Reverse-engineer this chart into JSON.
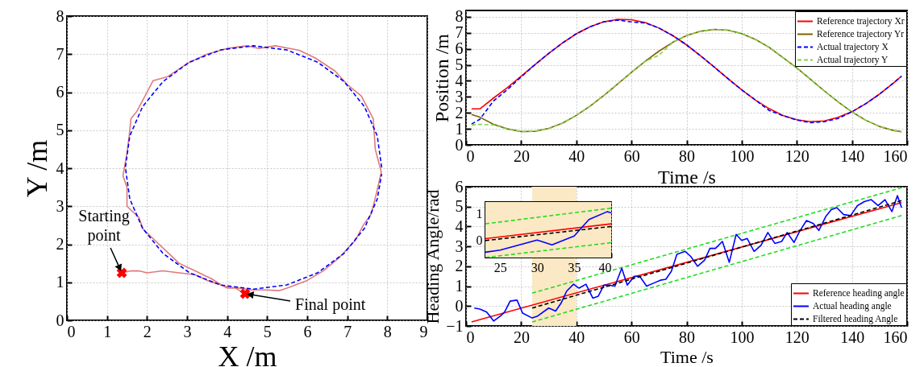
{
  "chart_data": [
    {
      "type": "line",
      "xlabel": "X /m",
      "ylabel": "Y /m",
      "xlim": [
        0,
        9
      ],
      "ylim": [
        0,
        8
      ],
      "xticks": [
        0,
        1,
        2,
        3,
        4,
        5,
        6,
        7,
        8,
        9
      ],
      "yticks": [
        0,
        1,
        2,
        3,
        4,
        5,
        6,
        7,
        8
      ],
      "grid": true,
      "series": [
        {
          "color": "#e07a7a",
          "line_style": "solid",
          "x": [
            1.37,
            1.6,
            1.8,
            2.0,
            2.4,
            2.8,
            3.2,
            3.5,
            3.8,
            4.0,
            4.3,
            4.6,
            5.0,
            5.3,
            5.55,
            6.0,
            6.4,
            6.8,
            7.2,
            7.4,
            7.6,
            7.72,
            7.85,
            7.7,
            7.65,
            7.5,
            7.35,
            7.0,
            6.7,
            6.2,
            5.8,
            5.2,
            4.8,
            4.5,
            4.0,
            3.5,
            3.0,
            2.5,
            2.15,
            2.0,
            1.75,
            1.6,
            1.55,
            1.5,
            1.4,
            1.5,
            1.5,
            1.8,
            1.9,
            2.2,
            2.5,
            2.8,
            3.2,
            3.6,
            3.9,
            4.2,
            4.45
          ],
          "values": [
            1.25,
            1.3,
            1.3,
            1.25,
            1.3,
            1.25,
            1.2,
            1.05,
            0.95,
            0.85,
            0.85,
            0.8,
            0.8,
            0.78,
            0.87,
            1.05,
            1.3,
            1.65,
            2.1,
            2.5,
            2.8,
            3.3,
            3.9,
            4.5,
            5.3,
            5.6,
            5.9,
            6.2,
            6.55,
            6.9,
            7.1,
            7.22,
            7.15,
            7.22,
            7.15,
            7.0,
            6.75,
            6.4,
            6.3,
            6.0,
            5.5,
            5.3,
            4.8,
            4.4,
            3.8,
            3.5,
            3.0,
            2.7,
            2.4,
            2.1,
            1.8,
            1.5,
            1.3,
            1.1,
            0.9,
            0.85,
            0.7
          ]
        },
        {
          "color": "#0000ff",
          "line_style": "dashed",
          "x": [
            7.86,
            7.75,
            7.43,
            6.92,
            6.26,
            5.49,
            4.66,
            3.83,
            3.06,
            2.4,
            1.89,
            1.57,
            1.46,
            1.57,
            1.89,
            2.4,
            3.06,
            3.83,
            4.66,
            5.49,
            6.26,
            6.92,
            7.43,
            7.75,
            7.86
          ],
          "values": [
            4.02,
            4.85,
            5.62,
            6.28,
            6.79,
            7.11,
            7.22,
            7.11,
            6.79,
            6.28,
            5.62,
            4.85,
            4.02,
            3.19,
            2.42,
            1.76,
            1.25,
            0.93,
            0.82,
            0.93,
            1.25,
            1.76,
            2.42,
            3.19,
            3.85
          ]
        },
        {
          "type": "scatter",
          "marker": "cross",
          "color": "#ff0000",
          "x": [
            1.37,
            4.45
          ],
          "values": [
            1.25,
            0.7
          ]
        }
      ],
      "annotations": [
        {
          "text": "Starting point",
          "x": 1.37,
          "y": 1.25
        },
        {
          "text": "Final point",
          "x": 4.45,
          "y": 0.7
        }
      ]
    },
    {
      "type": "line",
      "xlabel": "Time /s",
      "ylabel": "Position /m",
      "xlim": [
        0,
        160
      ],
      "ylim": [
        0,
        8.4
      ],
      "xticks": [
        0,
        20,
        40,
        60,
        80,
        100,
        120,
        140,
        160
      ],
      "yticks": [
        0,
        1,
        2,
        3,
        4,
        5,
        6,
        7,
        8
      ],
      "grid": true,
      "legend": "top right",
      "series": [
        {
          "name": "Reference trajectory Xr",
          "color": "#ff0000",
          "line_style": "solid",
          "x": [
            2,
            5,
            10,
            15,
            20,
            25,
            30,
            35,
            40,
            45,
            50,
            55,
            60,
            65,
            70,
            75,
            80,
            85,
            90,
            95,
            100,
            105,
            110,
            115,
            120,
            125,
            130,
            135,
            140,
            145,
            150,
            155,
            158
          ],
          "values": [
            2.25,
            2.25,
            2.93,
            3.58,
            4.29,
            5.01,
            5.72,
            6.37,
            6.94,
            7.38,
            7.69,
            7.84,
            7.82,
            7.64,
            7.3,
            6.83,
            6.25,
            5.58,
            4.87,
            4.14,
            3.44,
            2.8,
            2.26,
            1.84,
            1.57,
            1.45,
            1.5,
            1.72,
            2.07,
            2.57,
            3.17,
            3.86,
            4.29
          ]
        },
        {
          "name": "Reference trajectory Yr",
          "color": "#806000",
          "line_style": "solid",
          "x": [
            2,
            5,
            10,
            15,
            20,
            25,
            30,
            35,
            40,
            45,
            50,
            55,
            60,
            65,
            70,
            75,
            80,
            85,
            90,
            95,
            100,
            105,
            110,
            115,
            120,
            125,
            130,
            135,
            140,
            145,
            150,
            155,
            158
          ],
          "values": [
            1.9,
            1.73,
            1.28,
            1.0,
            0.83,
            0.85,
            1.03,
            1.36,
            1.84,
            2.42,
            3.09,
            3.8,
            4.53,
            5.23,
            5.86,
            6.41,
            6.83,
            7.1,
            7.22,
            7.17,
            6.95,
            6.59,
            6.09,
            null,
            4.81,
            4.09,
            3.37,
            2.68,
            2.06,
            1.54,
            1.15,
            0.9,
            0.83
          ]
        },
        {
          "name": "Actual trajectory X",
          "color": "#0000ff",
          "line_style": "dashed",
          "x": [
            2,
            5,
            10,
            15,
            20,
            25,
            30,
            35,
            40,
            45,
            50,
            55,
            60,
            65,
            70,
            75,
            80,
            85,
            90,
            95,
            100,
            105,
            110,
            115,
            120,
            125,
            130,
            135,
            140,
            145,
            150,
            155,
            158
          ],
          "values": [
            1.3,
            1.6,
            2.75,
            3.45,
            4.25,
            5.01,
            5.72,
            6.37,
            6.94,
            7.38,
            7.69,
            7.8,
            7.68,
            7.62,
            7.3,
            6.83,
            6.25,
            5.58,
            4.87,
            4.14,
            3.44,
            2.8,
            2.15,
            1.82,
            1.55,
            1.38,
            1.45,
            1.65,
            2.07,
            2.57,
            3.17,
            3.86,
            4.29
          ]
        },
        {
          "name": "Actual trajectory Y",
          "color": "#7fd34e",
          "line_style": "dashed",
          "x": [
            2,
            5,
            10,
            15,
            20,
            25,
            30,
            35,
            40,
            45,
            50,
            55,
            60,
            65,
            70,
            75,
            80,
            85,
            90,
            95,
            100,
            105,
            110,
            115,
            120,
            125,
            130,
            135,
            140,
            145,
            150,
            155,
            158
          ],
          "values": [
            1.25,
            1.28,
            1.25,
            1.0,
            0.83,
            0.85,
            1.03,
            1.36,
            1.84,
            2.42,
            3.09,
            3.8,
            4.53,
            5.23,
            5.6,
            6.41,
            6.83,
            7.1,
            7.22,
            7.17,
            6.95,
            6.59,
            6.09,
            null,
            4.81,
            4.09,
            3.37,
            2.68,
            2.06,
            1.54,
            1.15,
            0.9,
            0.8
          ]
        }
      ]
    },
    {
      "type": "line",
      "xlabel": "Time /s",
      "ylabel": "Heading Angle/rad",
      "xlim": [
        0,
        160
      ],
      "ylim": [
        -1,
        6
      ],
      "xticks": [
        0,
        20,
        40,
        60,
        80,
        100,
        120,
        140,
        160
      ],
      "yticks": [
        -1,
        0,
        1,
        2,
        3,
        4,
        5,
        6
      ],
      "grid": true,
      "legend": "bottom right",
      "bands": [
        {
          "axis": "x",
          "from": 24,
          "to": 40,
          "color": "#fbe8c4"
        }
      ],
      "series": [
        {
          "name": "Reference heading angle",
          "color": "#ff0000",
          "line_style": "solid",
          "x": [
            2,
            158
          ],
          "values": [
            -0.8,
            5.2
          ]
        },
        {
          "name": "Actual heading angle",
          "color": "#0000ff",
          "line_style": "solid",
          "x": [
            3,
            5,
            7.5,
            10,
            12.5,
            14,
            16,
            18.5,
            20.5,
            24,
            26,
            30,
            32.5,
            34.5,
            36.5,
            39,
            41,
            43.5,
            46,
            48,
            50,
            52,
            54,
            56.5,
            58.5,
            61,
            63,
            65.5,
            68,
            70.5,
            72.5,
            74.5,
            76.5,
            79.5,
            81.5,
            84,
            86.5,
            88.5,
            90.5,
            93,
            95.5,
            98,
            100,
            102,
            104.5,
            107,
            109.5,
            112,
            114.5,
            116.5,
            119,
            121,
            123.5,
            126,
            128,
            130.5,
            132.5,
            134.5,
            137,
            139.5,
            142,
            144.5,
            147,
            149.5,
            152,
            154.5,
            156.5,
            158
          ],
          "values": [
            -0.1,
            -0.15,
            -0.3,
            -0.75,
            -0.5,
            -0.3,
            0.25,
            0.3,
            -0.35,
            -0.6,
            -0.5,
            -0.1,
            -0.25,
            0.15,
            0.75,
            1.1,
            0.9,
            1.1,
            0.4,
            0.5,
            1.05,
            1.05,
            1.0,
            1.9,
            1.05,
            1.5,
            1.5,
            1.0,
            1.15,
            1.3,
            1.35,
            1.75,
            2.6,
            2.75,
            2.5,
            2.0,
            2.3,
            2.9,
            2.9,
            3.25,
            2.2,
            3.6,
            3.3,
            3.4,
            2.75,
            3.05,
            3.7,
            3.15,
            3.25,
            3.7,
            3.2,
            3.75,
            4.3,
            4.15,
            3.8,
            4.5,
            4.85,
            4.95,
            4.6,
            4.55,
            5.05,
            5.25,
            5.35,
            5.05,
            5.35,
            4.75,
            5.55,
            4.95
          ]
        },
        {
          "name": "Filtered heading Angle",
          "color": "#000000",
          "line_style": "dashed",
          "x": [
            24,
            158
          ],
          "values": [
            -0.1,
            5.3
          ]
        },
        {
          "color": "#22dd22",
          "line_style": "dashed",
          "x": [
            24,
            158
          ],
          "values": [
            0.65,
            5.95
          ]
        },
        {
          "color": "#22dd22",
          "line_style": "dashed",
          "x": [
            24,
            158
          ],
          "values": [
            -0.8,
            4.55
          ]
        }
      ]
    },
    {
      "type": "line",
      "xlim": [
        23,
        40
      ],
      "ylim": [
        -0.66,
        1.43
      ],
      "xticks": [
        25,
        30,
        35,
        40
      ],
      "yticks": [
        0,
        1
      ],
      "grid": true,
      "bands": [
        {
          "axis": "x",
          "from": 23,
          "to": 40,
          "color": "#fbe8c4"
        }
      ],
      "series": [
        {
          "color": "#ff0000",
          "line_style": "solid",
          "x": [
            23,
            40
          ],
          "values": [
            0.05,
            0.61
          ]
        },
        {
          "color": "#0000ff",
          "line_style": "solid",
          "x": [
            23,
            25,
            30,
            32,
            35,
            37,
            39.5,
            40
          ],
          "values": [
            -0.46,
            -0.38,
            0,
            -0.18,
            0.15,
            0.77,
            1.07,
            1.02
          ]
        },
        {
          "color": "#000000",
          "line_style": "dashed",
          "x": [
            23,
            40
          ],
          "values": [
            -0.02,
            0.51
          ]
        },
        {
          "color": "#22dd22",
          "line_style": "dashed",
          "x": [
            23,
            40
          ],
          "values": [
            0.61,
            1.2
          ]
        },
        {
          "color": "#22dd22",
          "line_style": "dashed",
          "x": [
            23,
            40
          ],
          "values": [
            -0.66,
            -0.1
          ]
        }
      ]
    }
  ]
}
